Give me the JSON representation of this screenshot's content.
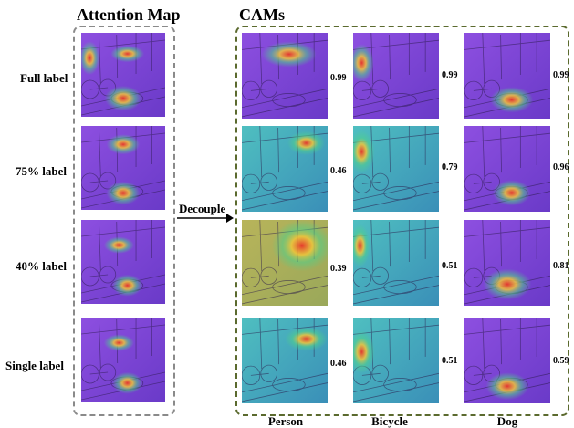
{
  "titles": {
    "attention": "Attention Map",
    "cams": "CAMs"
  },
  "arrow_label": "Decouple",
  "rows": [
    "Full label",
    "75% label",
    "40% label",
    "Single label"
  ],
  "columns": [
    "Person",
    "Bicycle",
    "Dog"
  ],
  "scores": [
    [
      "0.99",
      "0.99",
      "0.99"
    ],
    [
      "0.46",
      "0.79",
      "0.96"
    ],
    [
      "0.39",
      "0.51",
      "0.81"
    ],
    [
      "0.46",
      "0.51",
      "0.59"
    ]
  ],
  "colors": {
    "attention_border": "#8a8a8a",
    "cams_border": "#5b6a2e",
    "purple": "#7b3fd0",
    "teal": "#3fb8b0",
    "hot": "#e8352a"
  }
}
